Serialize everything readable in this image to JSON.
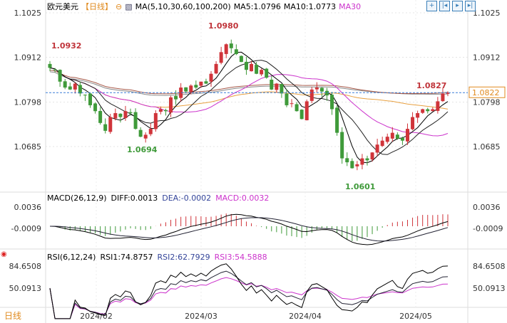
{
  "header": {
    "title": "欧元美元",
    "period": "【日线】",
    "ma_label": "MA(5,10,30,60,100,200)",
    "ma5": "MA5:1.0796",
    "ma10": "MA10:1.0773",
    "ma30": "MA30"
  },
  "tools": [
    "+",
    "|◂",
    "▸",
    "▸|"
  ],
  "macd": {
    "label": "MACD(26,12,9)",
    "diff": "DIFF:0.0013",
    "dea": "DEA:-0.0002",
    "macd": "MACD:0.0032",
    "ticks": [
      "0.0036",
      "-0.0009"
    ]
  },
  "rsi": {
    "label": "RSI(6,12,24)",
    "rsi1": "RSI1:74.8757",
    "rsi2": "RSI2:62.7929",
    "rsi3": "RSI3:54.5888",
    "ticks": [
      "84.6508",
      "50.0913"
    ]
  },
  "footer": {
    "period": "日线"
  },
  "colors": {
    "up": "#d0343a",
    "down": "#3f9a3a",
    "ma30": "#cc33cc",
    "ma60": "#e8a040",
    "ma100": "#a85a4a",
    "ma200": "#888888",
    "accent": "#e08a1e"
  },
  "chart_data": {
    "type": "candlestick",
    "yticks": [
      "1.1025",
      "1.0912",
      "1.0798",
      "1.0685"
    ],
    "ylim": [
      1.0575,
      1.1045
    ],
    "xticks": [
      "2024/02",
      "2024/03",
      "2024/04",
      "2024/05"
    ],
    "annotations": {
      "high": "1.0980",
      "low1": "1.0694",
      "low2": "1.0601",
      "left": "1.0932",
      "last_high": "1.0827",
      "current": "1.0822"
    },
    "closes": [
      1.0885,
      1.088,
      1.085,
      1.0835,
      1.083,
      1.0845,
      1.082,
      1.0815,
      1.079,
      1.0775,
      1.0745,
      1.0725,
      1.076,
      1.077,
      1.076,
      1.0775,
      1.077,
      1.073,
      1.071,
      1.0715,
      1.073,
      1.077,
      1.078,
      1.0775,
      1.081,
      1.0805,
      1.0835,
      1.0825,
      1.084,
      1.0835,
      1.085,
      1.0845,
      1.087,
      1.0895,
      1.0925,
      1.0945,
      1.0935,
      1.092,
      1.09,
      1.088,
      1.0895,
      1.087,
      1.088,
      1.086,
      1.083,
      1.0845,
      1.082,
      1.079,
      1.0795,
      1.0775,
      1.0755,
      1.08,
      1.083,
      1.0835,
      1.0825,
      1.0815,
      1.078,
      1.072,
      1.0655,
      1.0645,
      1.063,
      1.064,
      1.0655,
      1.065,
      1.067,
      1.069,
      1.07,
      1.071,
      1.072,
      1.0705,
      1.07,
      1.073,
      1.076,
      1.077,
      1.078,
      1.0775,
      1.078,
      1.08,
      1.082,
      1.0822
    ]
  }
}
